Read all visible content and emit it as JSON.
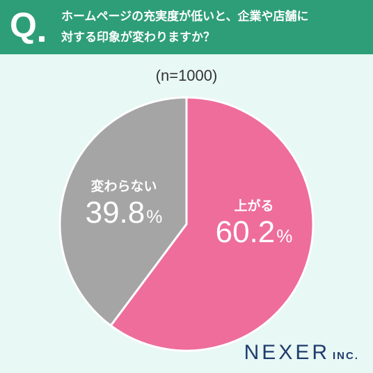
{
  "question": {
    "mark": "Q",
    "line1": "ホームページの充実度が低いと、企業や店舗に",
    "line2": "対する印象が変わりますか？"
  },
  "sample_label": "(n=1000)",
  "colors": {
    "header": "#2e9e78",
    "background": "#e8f8f4",
    "rise": "#ee6d9b",
    "no_change": "#a5a5a5"
  },
  "chart_data": {
    "type": "pie",
    "title": "",
    "slices": [
      {
        "label": "上がる",
        "value": 60.2,
        "display": "60.2",
        "color": "#ee6d9b"
      },
      {
        "label": "変わらない",
        "value": 39.8,
        "display": "39.8",
        "color": "#a5a5a5"
      }
    ],
    "unit": "%"
  },
  "brand": {
    "name": "NEXER",
    "suffix": "INC."
  }
}
